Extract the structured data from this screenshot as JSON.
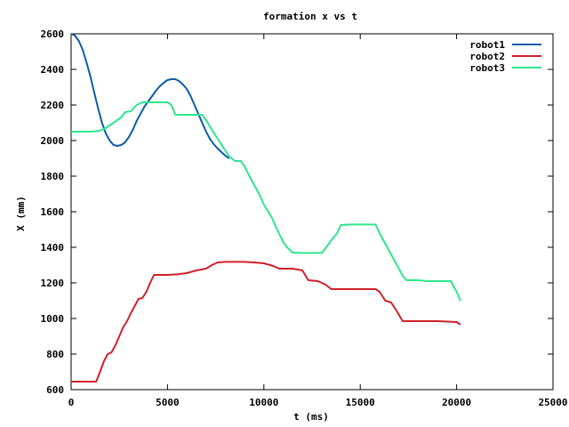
{
  "chart_data": {
    "type": "line",
    "title": "formation x vs t",
    "xlabel": "t (ms)",
    "ylabel": "X (mm)",
    "xlim": [
      0,
      25000
    ],
    "ylim": [
      600,
      2600
    ],
    "xticks": [
      0,
      5000,
      10000,
      15000,
      20000,
      25000
    ],
    "yticks": [
      600,
      800,
      1000,
      1200,
      1400,
      1600,
      1800,
      2000,
      2200,
      2400,
      2600
    ],
    "grid": false,
    "legend_position": "top-right",
    "series": [
      {
        "name": "robot1",
        "color": "#0b5ca8",
        "points": [
          [
            0,
            2600
          ],
          [
            200,
            2590
          ],
          [
            400,
            2560
          ],
          [
            600,
            2510
          ],
          [
            800,
            2440
          ],
          [
            1000,
            2360
          ],
          [
            1200,
            2270
          ],
          [
            1400,
            2180
          ],
          [
            1600,
            2100
          ],
          [
            1800,
            2040
          ],
          [
            2000,
            2000
          ],
          [
            2200,
            1975
          ],
          [
            2400,
            1970
          ],
          [
            2600,
            1975
          ],
          [
            2800,
            1990
          ],
          [
            3000,
            2020
          ],
          [
            3200,
            2060
          ],
          [
            3400,
            2110
          ],
          [
            3600,
            2150
          ],
          [
            3800,
            2190
          ],
          [
            4000,
            2220
          ],
          [
            4200,
            2250
          ],
          [
            4400,
            2280
          ],
          [
            4600,
            2305
          ],
          [
            4800,
            2325
          ],
          [
            5000,
            2340
          ],
          [
            5200,
            2345
          ],
          [
            5400,
            2345
          ],
          [
            5600,
            2335
          ],
          [
            5800,
            2315
          ],
          [
            6000,
            2290
          ],
          [
            6200,
            2250
          ],
          [
            6400,
            2200
          ],
          [
            6600,
            2150
          ],
          [
            6800,
            2100
          ],
          [
            7000,
            2050
          ],
          [
            7200,
            2010
          ],
          [
            7400,
            1980
          ],
          [
            7600,
            1955
          ],
          [
            7800,
            1935
          ],
          [
            8000,
            1915
          ],
          [
            8200,
            1900
          ]
        ]
      },
      {
        "name": "robot2",
        "color": "#d0202a",
        "points": [
          [
            0,
            645
          ],
          [
            500,
            645
          ],
          [
            1000,
            645
          ],
          [
            1300,
            645
          ],
          [
            1500,
            700
          ],
          [
            1700,
            760
          ],
          [
            1900,
            800
          ],
          [
            2100,
            810
          ],
          [
            2300,
            850
          ],
          [
            2500,
            900
          ],
          [
            2700,
            950
          ],
          [
            2900,
            985
          ],
          [
            3100,
            1030
          ],
          [
            3300,
            1070
          ],
          [
            3500,
            1110
          ],
          [
            3700,
            1115
          ],
          [
            3900,
            1150
          ],
          [
            4100,
            1200
          ],
          [
            4300,
            1245
          ],
          [
            4500,
            1245
          ],
          [
            5000,
            1245
          ],
          [
            5500,
            1248
          ],
          [
            6000,
            1255
          ],
          [
            6500,
            1270
          ],
          [
            7000,
            1280
          ],
          [
            7300,
            1300
          ],
          [
            7600,
            1315
          ],
          [
            8000,
            1318
          ],
          [
            9000,
            1318
          ],
          [
            9500,
            1315
          ],
          [
            10000,
            1310
          ],
          [
            10500,
            1295
          ],
          [
            10800,
            1280
          ],
          [
            11500,
            1280
          ],
          [
            12000,
            1270
          ],
          [
            12300,
            1215
          ],
          [
            12800,
            1210
          ],
          [
            13200,
            1190
          ],
          [
            13500,
            1165
          ],
          [
            14000,
            1165
          ],
          [
            15000,
            1165
          ],
          [
            15800,
            1165
          ],
          [
            16000,
            1150
          ],
          [
            16300,
            1100
          ],
          [
            16600,
            1090
          ],
          [
            16900,
            1040
          ],
          [
            17200,
            985
          ],
          [
            17500,
            985
          ],
          [
            18000,
            985
          ],
          [
            19000,
            985
          ],
          [
            20000,
            980
          ],
          [
            20200,
            965
          ]
        ]
      },
      {
        "name": "robot3",
        "color": "#2ee68c",
        "points": [
          [
            0,
            2050
          ],
          [
            500,
            2050
          ],
          [
            1000,
            2050
          ],
          [
            1500,
            2055
          ],
          [
            1800,
            2070
          ],
          [
            2200,
            2100
          ],
          [
            2600,
            2130
          ],
          [
            2800,
            2160
          ],
          [
            3100,
            2165
          ],
          [
            3400,
            2200
          ],
          [
            3700,
            2215
          ],
          [
            4000,
            2215
          ],
          [
            4500,
            2215
          ],
          [
            5000,
            2215
          ],
          [
            5200,
            2200
          ],
          [
            5400,
            2145
          ],
          [
            6000,
            2145
          ],
          [
            6500,
            2145
          ],
          [
            6800,
            2145
          ],
          [
            7000,
            2115
          ],
          [
            7300,
            2060
          ],
          [
            7600,
            2010
          ],
          [
            7900,
            1960
          ],
          [
            8200,
            1910
          ],
          [
            8500,
            1885
          ],
          [
            8800,
            1885
          ],
          [
            9000,
            1855
          ],
          [
            9200,
            1810
          ],
          [
            9400,
            1770
          ],
          [
            9600,
            1730
          ],
          [
            9800,
            1690
          ],
          [
            10000,
            1640
          ],
          [
            10200,
            1605
          ],
          [
            10400,
            1570
          ],
          [
            10600,
            1520
          ],
          [
            10800,
            1475
          ],
          [
            11000,
            1430
          ],
          [
            11200,
            1400
          ],
          [
            11500,
            1370
          ],
          [
            12000,
            1368
          ],
          [
            12500,
            1368
          ],
          [
            13000,
            1368
          ],
          [
            13200,
            1395
          ],
          [
            13500,
            1440
          ],
          [
            13800,
            1480
          ],
          [
            14000,
            1525
          ],
          [
            14500,
            1528
          ],
          [
            15000,
            1528
          ],
          [
            15500,
            1528
          ],
          [
            15800,
            1528
          ],
          [
            16000,
            1480
          ],
          [
            16300,
            1420
          ],
          [
            16600,
            1360
          ],
          [
            16900,
            1300
          ],
          [
            17200,
            1240
          ],
          [
            17400,
            1215
          ],
          [
            18000,
            1215
          ],
          [
            18500,
            1210
          ],
          [
            19000,
            1210
          ],
          [
            19700,
            1210
          ],
          [
            20000,
            1150
          ],
          [
            20200,
            1100
          ]
        ]
      }
    ]
  }
}
